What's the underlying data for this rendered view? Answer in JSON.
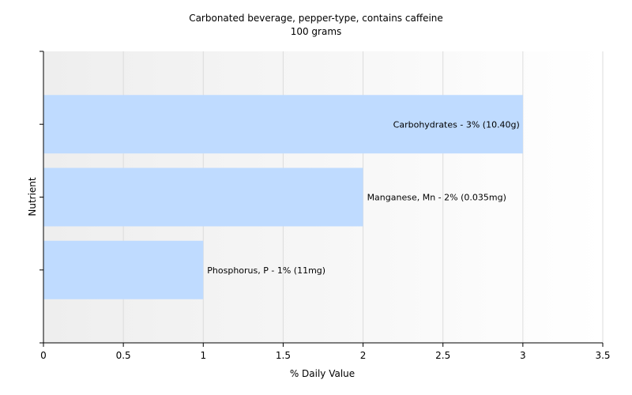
{
  "chart_data": {
    "type": "bar",
    "orientation": "horizontal",
    "title": "Carbonated beverage, pepper-type, contains caffeine",
    "subtitle": "100 grams",
    "xlabel": "% Daily Value",
    "ylabel": "Nutrient",
    "xlim": [
      0,
      3.5
    ],
    "x_ticks": [
      0,
      0.5,
      1,
      1.5,
      2,
      2.5,
      3,
      3.5
    ],
    "x_tick_labels": [
      "0",
      "0.5",
      "1",
      "1.5",
      "2",
      "2.5",
      "3",
      "3.5"
    ],
    "grid": true,
    "bars": [
      {
        "value": 3,
        "label": "Carbohydrates - 3% (10.40g)",
        "label_position": "inside"
      },
      {
        "value": 2,
        "label": "Manganese, Mn - 2% (0.035mg)",
        "label_position": "outside"
      },
      {
        "value": 1,
        "label": "Phosphorus, P - 1% (11mg)",
        "label_position": "outside"
      }
    ],
    "colors": {
      "bar": "#bfdbff",
      "plot_gradient_start": "#eeeeee",
      "plot_gradient_end": "#ffffff",
      "grid": "#dcdcdc",
      "axis": "#000000"
    }
  }
}
